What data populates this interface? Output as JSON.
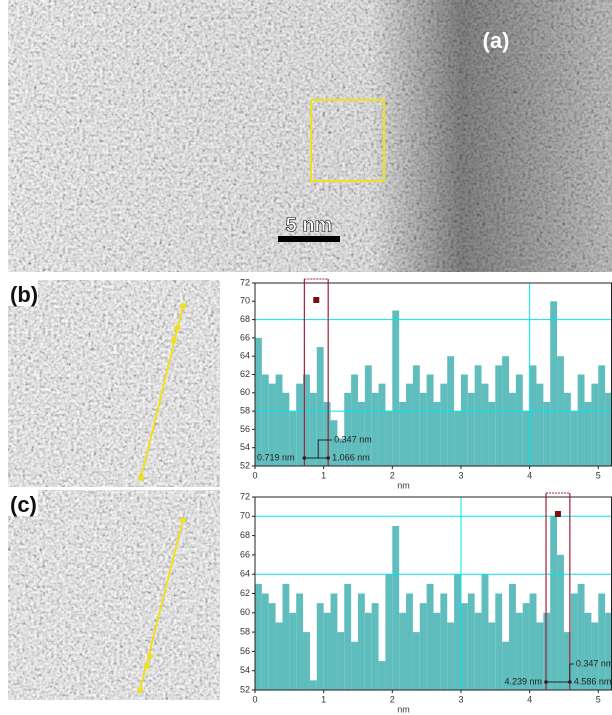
{
  "figure": {
    "panel_labels": [
      "(a)",
      "(b)",
      "(c)"
    ],
    "scale_bar": "5 nm"
  },
  "chart_data": [
    {
      "type": "bar",
      "x_label": "nm",
      "color": "#5fbdbd",
      "x": [
        0,
        0.1,
        0.2,
        0.3,
        0.4,
        0.5,
        0.6,
        0.7,
        0.8,
        0.9,
        1,
        1.1,
        1.2,
        1.3,
        1.4,
        1.5,
        1.6,
        1.7,
        1.8,
        1.9,
        2,
        2.1,
        2.2,
        2.3,
        2.4,
        2.5,
        2.6,
        2.7,
        2.8,
        2.9,
        3,
        3.1,
        3.2,
        3.3,
        3.4,
        3.5,
        3.6,
        3.7,
        3.8,
        3.9,
        4,
        4.1,
        4.2,
        4.3,
        4.4,
        4.5,
        4.6,
        4.7,
        4.8,
        4.9,
        5,
        5.1,
        5.2
      ],
      "values": [
        66,
        62,
        61,
        62,
        60,
        58,
        61,
        62,
        60,
        65,
        59,
        57,
        55,
        60,
        62,
        59,
        63,
        60,
        61,
        58,
        69,
        59,
        61,
        63,
        60,
        62,
        59,
        61,
        64,
        58,
        62,
        60,
        63,
        61,
        59,
        63,
        64,
        60,
        62,
        58,
        63,
        61,
        59,
        70,
        64,
        60,
        58,
        62,
        59,
        61,
        63,
        60,
        62
      ],
      "xlim": [
        0,
        5.2
      ],
      "xticks": [
        0,
        1,
        2,
        3,
        4,
        5
      ],
      "ylim": [
        52,
        72
      ],
      "yticks": [
        52,
        54,
        56,
        58,
        60,
        62,
        64,
        66,
        68,
        70,
        72
      ],
      "reference_lines": {
        "x": [
          4
        ],
        "y": [
          68,
          58
        ],
        "color": "#00e5ee"
      },
      "cursors": [
        0.719,
        1.066
      ],
      "cursor_labels": [
        "0.719 nm",
        "1.066 nm"
      ],
      "spacing_label": "0.347 nm",
      "cursor_color": "#a0203a"
    },
    {
      "type": "bar",
      "x_label": "nm",
      "color": "#5fbdbd",
      "x": [
        0,
        0.1,
        0.2,
        0.3,
        0.4,
        0.5,
        0.6,
        0.7,
        0.8,
        0.9,
        1,
        1.1,
        1.2,
        1.3,
        1.4,
        1.5,
        1.6,
        1.7,
        1.8,
        1.9,
        2,
        2.1,
        2.2,
        2.3,
        2.4,
        2.5,
        2.6,
        2.7,
        2.8,
        2.9,
        3,
        3.1,
        3.2,
        3.3,
        3.4,
        3.5,
        3.6,
        3.7,
        3.8,
        3.9,
        4,
        4.1,
        4.2,
        4.3,
        4.4,
        4.5,
        4.6,
        4.7,
        4.8,
        4.9,
        5,
        5.1,
        5.2
      ],
      "values": [
        63,
        62,
        61,
        59,
        63,
        60,
        62,
        58,
        53,
        61,
        60,
        62,
        58,
        63,
        57,
        62,
        60,
        61,
        55,
        64,
        69,
        60,
        62,
        58,
        61,
        63,
        60,
        62,
        59,
        64,
        61,
        62,
        60,
        64,
        59,
        62,
        57,
        63,
        60,
        61,
        62,
        59,
        60,
        70,
        66,
        58,
        62,
        63,
        60,
        59,
        62,
        60,
        61
      ],
      "xlim": [
        0,
        5.2
      ],
      "xticks": [
        0,
        1,
        2,
        3,
        4,
        5
      ],
      "ylim": [
        52,
        72
      ],
      "yticks": [
        52,
        54,
        56,
        58,
        60,
        62,
        64,
        66,
        68,
        70,
        72
      ],
      "reference_lines": {
        "x": [
          3
        ],
        "y": [
          70,
          64
        ],
        "color": "#00e5ee"
      },
      "cursors": [
        4.239,
        4.586
      ],
      "cursor_labels": [
        "4.239 nm",
        "4.586 nm"
      ],
      "spacing_label": "0.347 nm",
      "cursor_color": "#a0203a"
    }
  ]
}
